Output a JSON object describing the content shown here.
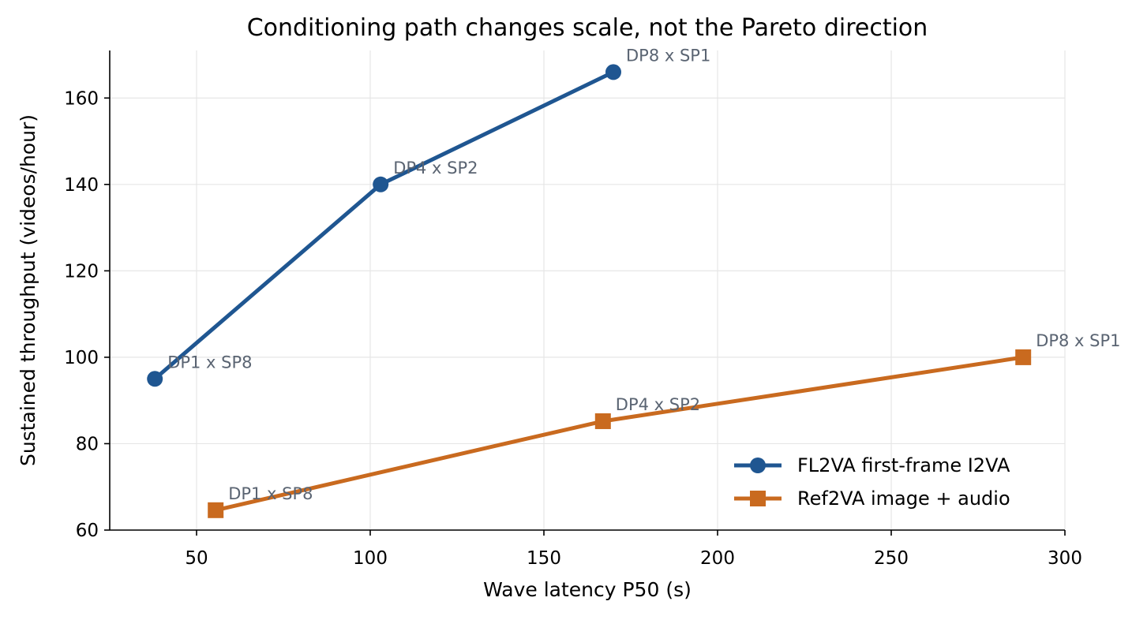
{
  "chart_data": {
    "type": "line",
    "title": "Conditioning path changes scale, not the Pareto direction",
    "xlabel": "Wave latency P50 (s)",
    "ylabel": "Sustained throughput (videos/hour)",
    "xlim": [
      25,
      300
    ],
    "ylim": [
      60,
      171
    ],
    "xticks": [
      50,
      100,
      150,
      200,
      250,
      300
    ],
    "yticks": [
      60,
      80,
      100,
      120,
      140,
      160
    ],
    "grid": true,
    "legend_position": "lower-right",
    "series": [
      {
        "name": "FL2VA first-frame I2VA",
        "color": "#1f5691",
        "marker": "circle",
        "points": [
          {
            "x": 38,
            "y": 95,
            "label": "DP1 x SP8"
          },
          {
            "x": 103,
            "y": 140,
            "label": "DP4 x SP2"
          },
          {
            "x": 170,
            "y": 166,
            "label": "DP8 x SP1"
          }
        ]
      },
      {
        "name": "Ref2VA image + audio",
        "color": "#c96a1f",
        "marker": "square",
        "points": [
          {
            "x": 55.5,
            "y": 64.6,
            "label": "DP1 x SP8"
          },
          {
            "x": 167,
            "y": 85.2,
            "label": "DP4 x SP2"
          },
          {
            "x": 288,
            "y": 100,
            "label": "DP8 x SP1"
          }
        ]
      }
    ]
  }
}
